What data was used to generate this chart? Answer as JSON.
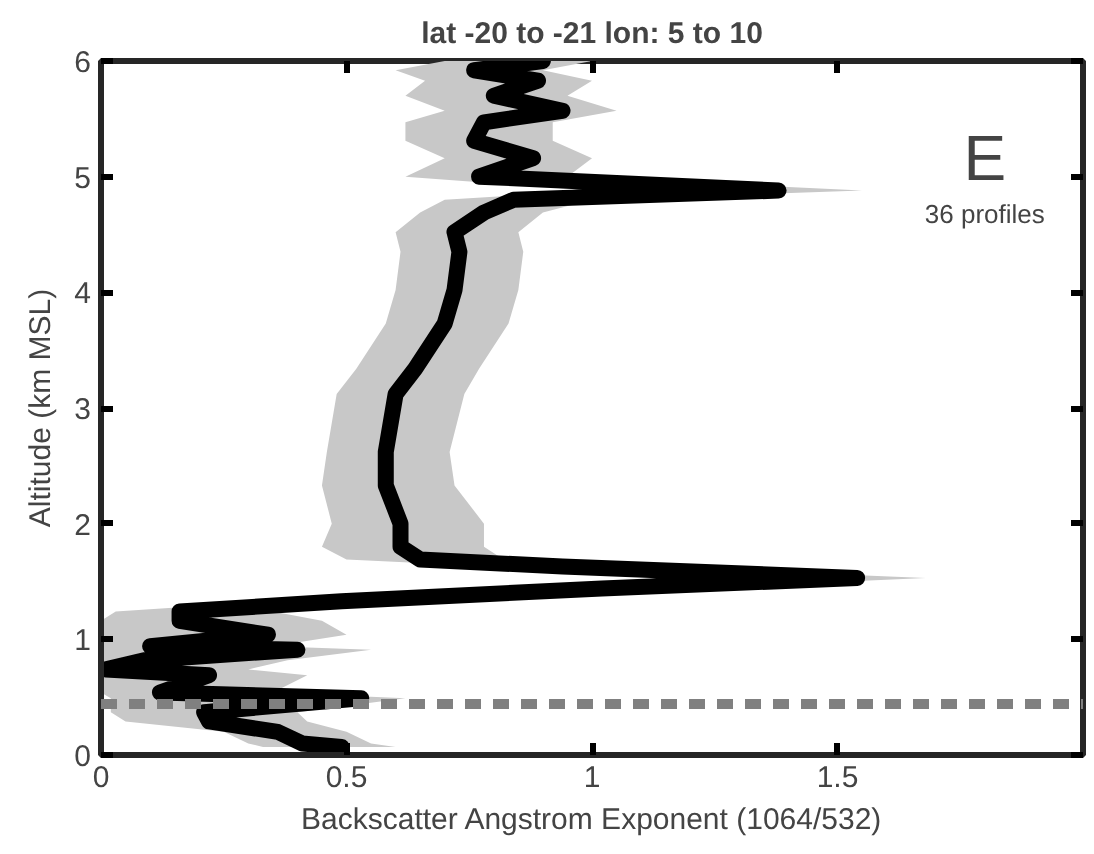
{
  "chart_data": {
    "type": "line",
    "title": "lat -20 to -21 lon: 5 to 10",
    "xlabel": "Backscatter Angstrom Exponent (1064/532)",
    "ylabel": "Altitude (km MSL)",
    "annotations": [
      "E",
      "36 profiles"
    ],
    "xlim": [
      0,
      2
    ],
    "xticks": [
      0,
      0.5,
      1,
      1.5
    ],
    "ylim": [
      0,
      6
    ],
    "yticks": [
      0,
      1,
      2,
      3,
      4,
      5,
      6
    ],
    "grid": false,
    "orientation": "horizontal",
    "line_style": "solid",
    "ref_lines": [
      {
        "axis": "y",
        "value": 0.44,
        "color": "#808080",
        "line_style": "dashed"
      }
    ],
    "series": [
      {
        "color": "#000000",
        "values": [
          0.49,
          0.41,
          0.36,
          0.22,
          0.21,
          0.53,
          0.12,
          0.22,
          0.01,
          0.09,
          0.4,
          0.1,
          0.34,
          0.16,
          0.16,
          0.49,
          1.02,
          1.54,
          0.94,
          0.65,
          0.61,
          0.61,
          0.58,
          0.58,
          0.6,
          0.64,
          0.7,
          0.72,
          0.73,
          0.72,
          0.78,
          0.84,
          1.38,
          0.77,
          0.88,
          0.76,
          0.78,
          0.94,
          0.8,
          0.89,
          0.76,
          0.9
        ],
        "x": [
          0.07,
          0.1,
          0.2,
          0.29,
          0.37,
          0.49,
          0.54,
          0.69,
          0.74,
          0.82,
          0.91,
          0.94,
          1.04,
          1.16,
          1.24,
          1.33,
          1.44,
          1.53,
          1.63,
          1.69,
          1.8,
          2.0,
          2.33,
          2.62,
          3.12,
          3.34,
          3.73,
          4.02,
          4.35,
          4.52,
          4.69,
          4.8,
          4.88,
          5.0,
          5.16,
          5.31,
          5.47,
          5.57,
          5.7,
          5.83,
          5.92,
          6.0
        ],
        "lower": [
          0.33,
          0.3,
          0.25,
          0.05,
          0.02,
          0.02,
          0.0,
          0.0,
          0.0,
          0.0,
          0.0,
          0.0,
          0.0,
          0.0,
          0.03,
          0.35,
          0.85,
          1.3,
          0.8,
          0.5,
          0.45,
          0.47,
          0.45,
          0.46,
          0.48,
          0.52,
          0.58,
          0.6,
          0.61,
          0.6,
          0.65,
          0.7,
          1.0,
          0.62,
          0.7,
          0.62,
          0.62,
          0.7,
          0.62,
          0.66,
          0.6,
          0.7
        ],
        "upper": [
          0.6,
          0.55,
          0.5,
          0.42,
          0.4,
          0.62,
          0.35,
          0.42,
          0.3,
          0.38,
          0.55,
          0.35,
          0.5,
          0.45,
          0.35,
          0.65,
          1.2,
          1.68,
          1.1,
          0.82,
          0.78,
          0.78,
          0.72,
          0.71,
          0.74,
          0.77,
          0.83,
          0.85,
          0.86,
          0.85,
          0.9,
          1.0,
          1.55,
          0.95,
          1.0,
          0.92,
          0.92,
          1.05,
          0.95,
          1.0,
          0.9,
          1.0
        ]
      }
    ]
  }
}
